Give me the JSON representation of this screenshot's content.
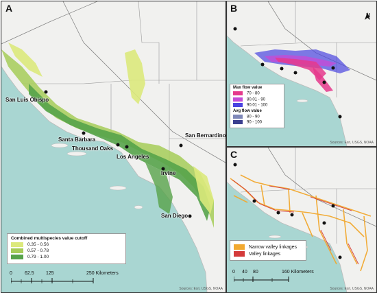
{
  "panels": {
    "a": {
      "letter": "A",
      "cities": [
        "San Luis Obispo",
        "Santa Barbara",
        "Thousand Oaks",
        "Los Angeles",
        "San Bernardino",
        "Irvine",
        "San Diego"
      ],
      "legend": {
        "title": "Combined multispecies value cutoff",
        "items": [
          {
            "label": "0.35 - 0.56",
            "color": "#dce97c"
          },
          {
            "label": "0.57 - 0.78",
            "color": "#a6cc58"
          },
          {
            "label": "0.79 - 1.00",
            "color": "#57a34a"
          }
        ]
      },
      "scale": {
        "ticks": [
          "0",
          "62.5",
          "125",
          "250 Kilometers"
        ]
      },
      "attribution": "Sources: Esri, USGS, NOAA"
    },
    "b": {
      "letter": "B",
      "north": "N",
      "legend": {
        "max_title": "Max flow value",
        "max_items": [
          {
            "label": "70 - 80",
            "color": "#e53a8c"
          },
          {
            "label": "80.01 - 90",
            "color": "#c44bd6"
          },
          {
            "label": "90.01 - 100",
            "color": "#4a44e0"
          }
        ],
        "avg_title": "Avg flow value",
        "avg_items": [
          {
            "label": "80 - 90",
            "color": "#7f88b8"
          },
          {
            "label": "90 - 100",
            "color": "#3b3f8f"
          }
        ]
      },
      "attribution": "Sources: Esri, USGS, NOAA"
    },
    "c": {
      "letter": "C",
      "legend": {
        "items": [
          {
            "label": "Narrow valley linkages",
            "color": "#f2a930"
          },
          {
            "label": "Valley linkages",
            "color": "#d43a3a"
          }
        ]
      },
      "scale": {
        "ticks": [
          "0",
          "40",
          "80",
          "160 Kilometers"
        ]
      },
      "attribution": "Sources: Esri, USGS, NOAA"
    }
  }
}
